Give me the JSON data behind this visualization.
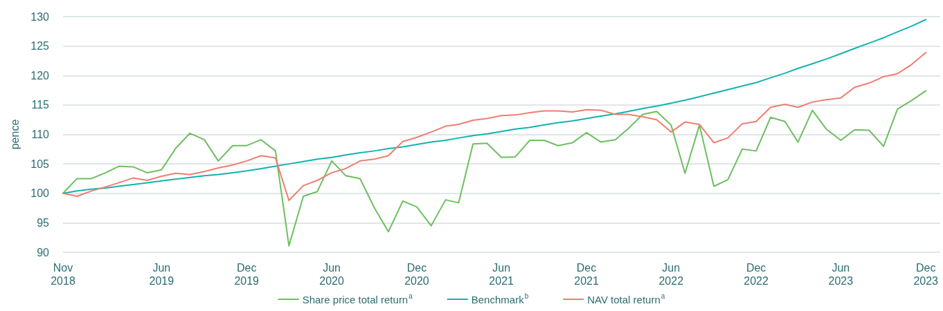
{
  "chart_data": {
    "type": "line",
    "ylabel": "pence",
    "x": [
      "2018-11",
      "2018-12",
      "2019-01",
      "2019-02",
      "2019-03",
      "2019-04",
      "2019-05",
      "2019-06",
      "2019-07",
      "2019-08",
      "2019-09",
      "2019-10",
      "2019-11",
      "2019-12",
      "2020-01",
      "2020-02",
      "2020-03",
      "2020-04",
      "2020-05",
      "2020-06",
      "2020-07",
      "2020-08",
      "2020-09",
      "2020-10",
      "2020-11",
      "2020-12",
      "2021-01",
      "2021-02",
      "2021-03",
      "2021-04",
      "2021-05",
      "2021-06",
      "2021-07",
      "2021-08",
      "2021-09",
      "2021-10",
      "2021-11",
      "2021-12",
      "2022-01",
      "2022-02",
      "2022-03",
      "2022-04",
      "2022-05",
      "2022-06",
      "2022-07",
      "2022-08",
      "2022-09",
      "2022-10",
      "2022-11",
      "2022-12",
      "2023-01",
      "2023-02",
      "2023-03",
      "2023-04",
      "2023-05",
      "2023-06",
      "2023-07",
      "2023-08",
      "2023-09",
      "2023-10",
      "2023-11",
      "2023-12"
    ],
    "series": [
      {
        "name": "Share price total return$^{a}$",
        "color": "#6cbf5f",
        "values": [
          100,
          102.5,
          102.5,
          103.5,
          104.6,
          104.5,
          103.5,
          104.0,
          107.6,
          110.2,
          109.1,
          105.5,
          108.1,
          108.1,
          109.1,
          107.2,
          91.1,
          99.5,
          100.3,
          105.5,
          103.0,
          102.5,
          97.5,
          93.5,
          98.7,
          97.7,
          94.5,
          98.9,
          98.4,
          108.4,
          108.5,
          106.1,
          106.2,
          109.0,
          109.0,
          108.1,
          108.6,
          110.3,
          108.7,
          109.1,
          111.0,
          113.4,
          113.9,
          111.6,
          103.4,
          111.6,
          101.2,
          102.3,
          107.5,
          107.2,
          112.9,
          112.2,
          108.7,
          114.1,
          110.9,
          109.0,
          110.8,
          110.7,
          108.0,
          114.3,
          115.8,
          117.4
        ]
      },
      {
        "name": "Benchmark$^{b}$",
        "color": "#12b3ae",
        "values": [
          100.0,
          100.4,
          100.7,
          100.9,
          101.2,
          101.5,
          101.8,
          102.1,
          102.4,
          102.7,
          103.0,
          103.2,
          103.5,
          103.8,
          104.2,
          104.6,
          105.0,
          105.4,
          105.8,
          106.1,
          106.5,
          106.9,
          107.2,
          107.6,
          107.9,
          108.3,
          108.7,
          109.0,
          109.4,
          109.8,
          110.1,
          110.5,
          110.9,
          111.2,
          111.6,
          112.0,
          112.3,
          112.7,
          113.1,
          113.5,
          113.9,
          114.4,
          114.8,
          115.3,
          115.8,
          116.4,
          117.0,
          117.6,
          118.2,
          118.8,
          119.6,
          120.4,
          121.2,
          122.0,
          122.8,
          123.7,
          124.6,
          125.5,
          126.4,
          127.4,
          128.4,
          129.5
        ]
      },
      {
        "name": "NAV total return$^{a}$",
        "color": "#ee7e70",
        "values": [
          100,
          99.5,
          100.4,
          101.1,
          101.8,
          102.6,
          102.2,
          102.9,
          103.4,
          103.2,
          103.7,
          104.3,
          104.8,
          105.5,
          106.4,
          106.0,
          98.8,
          101.3,
          102.2,
          103.5,
          104.2,
          105.5,
          105.8,
          106.4,
          108.8,
          109.5,
          110.4,
          111.4,
          111.7,
          112.4,
          112.7,
          113.2,
          113.3,
          113.7,
          114.0,
          114.0,
          113.8,
          114.2,
          114.1,
          113.4,
          113.4,
          113.0,
          112.5,
          110.4,
          112.1,
          111.7,
          108.6,
          109.4,
          111.8,
          112.2,
          114.6,
          115.1,
          114.6,
          115.5,
          115.9,
          116.2,
          118.0,
          118.7,
          119.8,
          120.3,
          121.9,
          123.9
        ]
      }
    ],
    "xlim": [
      "2018-11",
      "2024-01"
    ],
    "xticks": [
      {
        "value": "2018-11",
        "label": "Nov 2018"
      },
      {
        "value": "2019-06",
        "label": "Jun 2019"
      },
      {
        "value": "2019-12",
        "label": "Dec 2019"
      },
      {
        "value": "2020-06",
        "label": "Jun 2020"
      },
      {
        "value": "2020-12",
        "label": "Dec 2020"
      },
      {
        "value": "2021-06",
        "label": "Jun 2021"
      },
      {
        "value": "2021-12",
        "label": "Dec 2021"
      },
      {
        "value": "2022-06",
        "label": "Jun 2022"
      },
      {
        "value": "2022-12",
        "label": "Dec 2022"
      },
      {
        "value": "2023-06",
        "label": "Jun 2023"
      },
      {
        "value": "2023-12",
        "label": "Dec 2023"
      }
    ],
    "ylim": [
      90,
      130
    ],
    "yticks": [
      90,
      95,
      100,
      105,
      110,
      115,
      120,
      125,
      130
    ],
    "grid": "y",
    "legend": "bottom"
  }
}
